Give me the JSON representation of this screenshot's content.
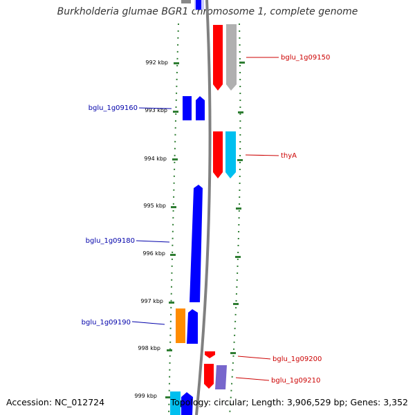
{
  "title": "Burkholderia glumae BGR1 chromosome 1, complete genome",
  "accession_text": "Accession: NC_012724",
  "topology_text": "Topology: circular; Length: 3,906,529 bp; Genes: 3,352",
  "colors": {
    "forward_gene": "#ff0000",
    "reverse_gene": "#0000ff",
    "forward_label": "#cc0000",
    "reverse_label": "#0000aa",
    "ruler_tick": "#2e7d32",
    "grey_feature": "#b0b0b0",
    "cyan_feature": "#00bfef",
    "orange_feature": "#ff8c00",
    "violet_feature": "#7766cc",
    "lavender_feature": "#c8c8ff"
  },
  "scale_ticks": [
    {
      "label": "992 kbp"
    },
    {
      "label": "993 kbp"
    },
    {
      "label": "994 kbp"
    },
    {
      "label": "995 kbp"
    },
    {
      "label": "996 kbp"
    },
    {
      "label": "997 kbp"
    },
    {
      "label": "998 kbp"
    },
    {
      "label": "999 kbp"
    }
  ],
  "gene_labels": [
    {
      "text": "bglu_1g09150",
      "strand": "forward"
    },
    {
      "text": "bglu_1g09160",
      "strand": "reverse"
    },
    {
      "text": "thyA",
      "strand": "forward"
    },
    {
      "text": "bglu_1g09180",
      "strand": "reverse"
    },
    {
      "text": "bglu_1g09190",
      "strand": "reverse"
    },
    {
      "text": "bglu_1g09200",
      "strand": "forward"
    },
    {
      "text": "bglu_1g09210",
      "strand": "forward"
    }
  ]
}
